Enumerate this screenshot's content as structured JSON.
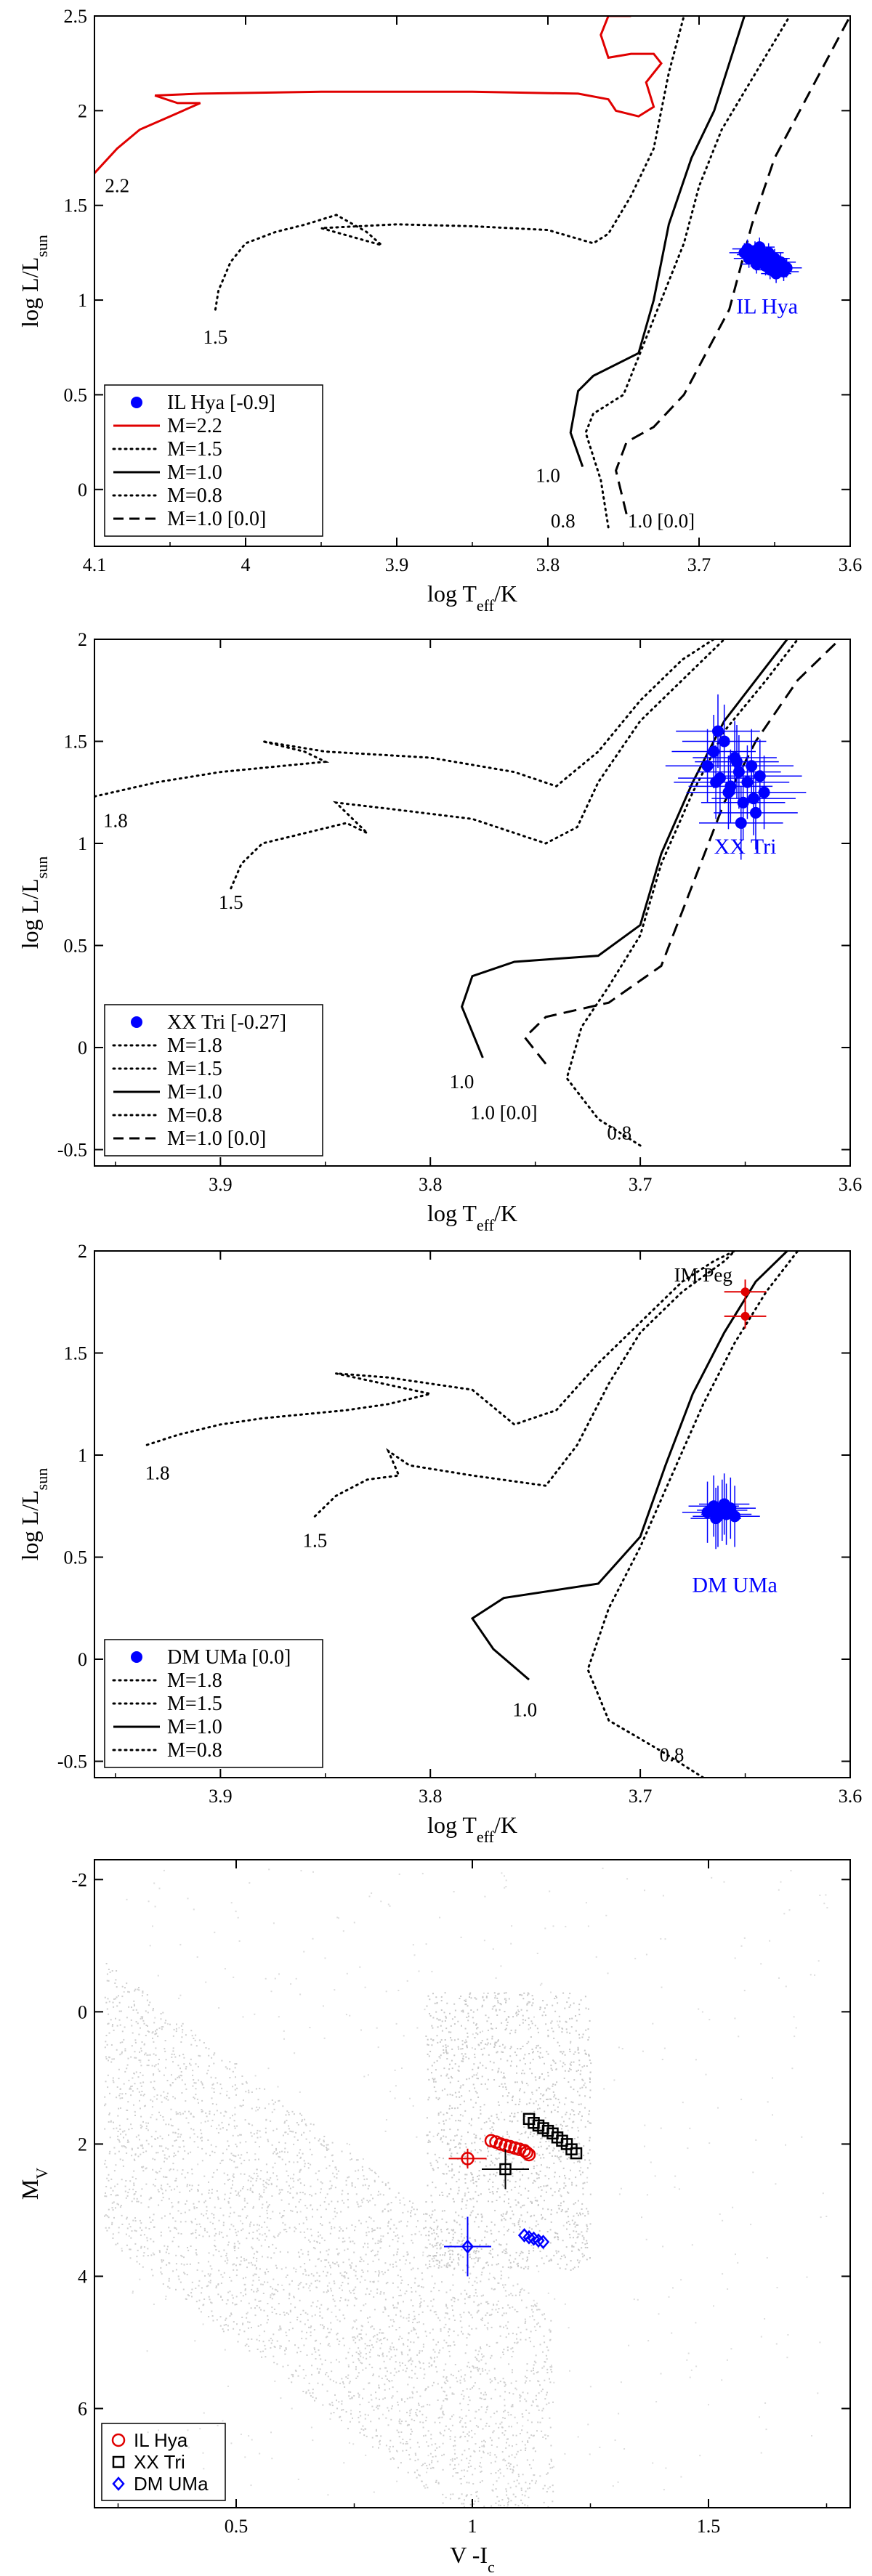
{
  "chart_data": [
    {
      "type": "line",
      "id": "p1",
      "xlabel": "log T_eff/K",
      "ylabel": "log L/L_sun",
      "xlim": [
        4.1,
        3.6
      ],
      "ylim": [
        -0.3,
        2.5
      ],
      "xticks": [
        "4.1",
        "4",
        "3.9",
        "3.8",
        "3.7",
        "3.6"
      ],
      "yticks": [
        "0",
        "0.5",
        "1",
        "1.5",
        "2",
        "2.5"
      ],
      "legend_position": "bottom-left",
      "legend": [
        {
          "label": "IL Hya [-0.9]",
          "symbol": "dot",
          "color": "#0000ff"
        },
        {
          "label": "M=2.2",
          "symbol": "solid",
          "color": "#e00000"
        },
        {
          "label": "M=1.5",
          "symbol": "dotted",
          "color": "#000000"
        },
        {
          "label": "M=1.0",
          "symbol": "solid",
          "color": "#000000"
        },
        {
          "label": "M=0.8",
          "symbol": "dotted",
          "color": "#000000"
        },
        {
          "label": "M=1.0 [0.0]",
          "symbol": "dashed",
          "color": "#000000"
        }
      ],
      "series": [
        {
          "name": "M=2.2",
          "style": "solid",
          "color": "#e00000",
          "x": [
            4.1,
            4.085,
            4.07,
            4.05,
            4.03,
            4.045,
            4.06,
            4.03,
            3.95,
            3.85,
            3.78,
            3.76,
            3.755,
            3.74,
            3.73,
            3.735,
            3.725,
            3.73,
            3.745,
            3.76,
            3.765,
            3.76,
            3.745
          ],
          "y": [
            1.67,
            1.8,
            1.9,
            1.97,
            2.04,
            2.04,
            2.08,
            2.09,
            2.1,
            2.1,
            2.09,
            2.06,
            2.0,
            1.97,
            2.02,
            2.15,
            2.25,
            2.3,
            2.3,
            2.28,
            2.4,
            2.5,
            2.5
          ]
        },
        {
          "name": "M=1.5",
          "style": "dotted",
          "color": "#000000",
          "x": [
            4.02,
            4.018,
            4.01,
            4.0,
            3.98,
            3.96,
            3.94,
            3.92,
            3.91,
            3.95,
            3.9,
            3.85,
            3.8,
            3.77,
            3.76,
            3.745,
            3.73,
            3.72,
            3.71
          ],
          "y": [
            0.95,
            1.05,
            1.2,
            1.3,
            1.36,
            1.4,
            1.45,
            1.36,
            1.29,
            1.38,
            1.4,
            1.39,
            1.37,
            1.3,
            1.35,
            1.55,
            1.8,
            2.2,
            2.5
          ]
        },
        {
          "name": "M=1.0",
          "style": "solid",
          "color": "#000000",
          "x": [
            3.777,
            3.785,
            3.78,
            3.77,
            3.74,
            3.73,
            3.72,
            3.705,
            3.69,
            3.68,
            3.67
          ],
          "y": [
            0.12,
            0.3,
            0.52,
            0.6,
            0.72,
            1.0,
            1.4,
            1.75,
            2.0,
            2.25,
            2.5
          ]
        },
        {
          "name": "M=0.8",
          "style": "dotted",
          "color": "#000000",
          "x": [
            3.76,
            3.765,
            3.775,
            3.77,
            3.75,
            3.73,
            3.71,
            3.7,
            3.685,
            3.67,
            3.655,
            3.64
          ],
          "y": [
            -0.2,
            0.05,
            0.3,
            0.4,
            0.5,
            0.9,
            1.3,
            1.6,
            1.9,
            2.1,
            2.3,
            2.5
          ]
        },
        {
          "name": "M=1.0 [0.0]",
          "style": "dashed",
          "color": "#000000",
          "x": [
            3.748,
            3.755,
            3.748,
            3.73,
            3.71,
            3.68,
            3.665,
            3.65,
            3.63,
            3.61,
            3.6
          ],
          "y": [
            -0.13,
            0.1,
            0.25,
            0.33,
            0.5,
            0.95,
            1.4,
            1.75,
            2.05,
            2.35,
            2.5
          ]
        }
      ],
      "scatter": {
        "name": "IL Hya [-0.9]",
        "color": "#0000ff",
        "x": [
          3.67,
          3.668,
          3.665,
          3.663,
          3.661,
          3.66,
          3.658,
          3.657,
          3.655,
          3.654,
          3.652,
          3.65,
          3.648,
          3.646,
          3.644,
          3.642,
          3.667,
          3.662,
          3.659,
          3.656,
          3.653,
          3.649
        ],
        "y": [
          1.25,
          1.27,
          1.24,
          1.26,
          1.22,
          1.28,
          1.21,
          1.23,
          1.2,
          1.25,
          1.19,
          1.22,
          1.17,
          1.2,
          1.15,
          1.17,
          1.22,
          1.19,
          1.24,
          1.18,
          1.16,
          1.14
        ],
        "xerr": 0.01,
        "yerr": 0.05
      },
      "track_labels": [
        {
          "text": "2.2",
          "x": 4.085,
          "y": 1.57
        },
        {
          "text": "1.5",
          "x": 4.02,
          "y": 0.77
        },
        {
          "text": "1.0",
          "x": 3.8,
          "y": 0.04
        },
        {
          "text": "0.8",
          "x": 3.79,
          "y": -0.2
        },
        {
          "text": "1.0 [0.0]",
          "x": 3.725,
          "y": -0.2
        }
      ],
      "star_label": {
        "text": "IL Hya",
        "x": 3.655,
        "y": 0.93,
        "color": "#0000ff"
      }
    },
    {
      "type": "line",
      "id": "p2",
      "xlabel": "log T_eff/K",
      "ylabel": "log L/L_sun",
      "xlim": [
        3.96,
        3.6
      ],
      "ylim": [
        -0.58,
        2.0
      ],
      "xticks": [
        "3.9",
        "3.8",
        "3.7",
        "3.6"
      ],
      "yticks": [
        "-0.5",
        "0",
        "0.5",
        "1",
        "1.5",
        "2"
      ],
      "legend_position": "bottom-left",
      "legend": [
        {
          "label": "XX Tri [-0.27]",
          "symbol": "dot",
          "color": "#0000ff"
        },
        {
          "label": "M=1.8",
          "symbol": "dotted",
          "color": "#000000"
        },
        {
          "label": "M=1.5",
          "symbol": "dotted",
          "color": "#000000"
        },
        {
          "label": "M=1.0",
          "symbol": "solid",
          "color": "#000000"
        },
        {
          "label": "M=0.8",
          "symbol": "dotted",
          "color": "#000000"
        },
        {
          "label": "M=1.0 [0.0]",
          "symbol": "dashed",
          "color": "#000000"
        }
      ],
      "series": [
        {
          "name": "M=1.8",
          "style": "dotted",
          "color": "#000000",
          "x": [
            3.96,
            3.93,
            3.9,
            3.87,
            3.85,
            3.86,
            3.88,
            3.85,
            3.8,
            3.76,
            3.74,
            3.72,
            3.7,
            3.68,
            3.665
          ],
          "y": [
            1.23,
            1.3,
            1.35,
            1.38,
            1.4,
            1.45,
            1.5,
            1.45,
            1.42,
            1.35,
            1.28,
            1.45,
            1.7,
            1.9,
            2.0
          ]
        },
        {
          "name": "M=1.5",
          "style": "dotted",
          "color": "#000000",
          "x": [
            3.895,
            3.89,
            3.88,
            3.86,
            3.84,
            3.83,
            3.845,
            3.82,
            3.78,
            3.745,
            3.73,
            3.72,
            3.7,
            3.675,
            3.66
          ],
          "y": [
            0.78,
            0.9,
            1.0,
            1.05,
            1.1,
            1.05,
            1.2,
            1.17,
            1.12,
            1.0,
            1.08,
            1.3,
            1.6,
            1.85,
            2.0
          ]
        },
        {
          "name": "M=1.0",
          "style": "solid",
          "color": "#000000",
          "x": [
            3.775,
            3.785,
            3.78,
            3.76,
            3.72,
            3.7,
            3.69,
            3.675,
            3.66,
            3.645,
            3.63
          ],
          "y": [
            -0.05,
            0.2,
            0.35,
            0.42,
            0.45,
            0.6,
            0.95,
            1.3,
            1.6,
            1.8,
            2.0
          ]
        },
        {
          "name": "M=0.8",
          "style": "dotted",
          "color": "#000000",
          "x": [
            3.7,
            3.72,
            3.735,
            3.728,
            3.715,
            3.7,
            3.69,
            3.675,
            3.66,
            3.64,
            3.625
          ],
          "y": [
            -0.48,
            -0.35,
            -0.15,
            0.1,
            0.3,
            0.55,
            0.9,
            1.25,
            1.55,
            1.8,
            2.0
          ]
        },
        {
          "name": "M=1.0 [0.0]",
          "style": "dashed",
          "color": "#000000",
          "x": [
            3.745,
            3.755,
            3.745,
            3.715,
            3.69,
            3.675,
            3.66,
            3.645,
            3.625,
            3.605
          ],
          "y": [
            -0.08,
            0.05,
            0.15,
            0.22,
            0.4,
            0.8,
            1.2,
            1.5,
            1.8,
            2.0
          ]
        }
      ],
      "scatter": {
        "name": "XX Tri [-0.27]",
        "color": "#0000ff",
        "x": [
          3.668,
          3.665,
          3.662,
          3.66,
          3.658,
          3.655,
          3.653,
          3.651,
          3.649,
          3.647,
          3.645,
          3.643,
          3.641,
          3.663,
          3.657,
          3.652,
          3.646,
          3.664,
          3.654
        ],
        "y": [
          1.38,
          1.45,
          1.32,
          1.5,
          1.25,
          1.42,
          1.35,
          1.2,
          1.3,
          1.38,
          1.15,
          1.33,
          1.25,
          1.55,
          1.28,
          1.1,
          1.22,
          1.3,
          1.4
        ],
        "xerr": 0.02,
        "yerr": 0.18
      },
      "track_labels": [
        {
          "text": "1.8",
          "x": 3.95,
          "y": 1.08
        },
        {
          "text": "1.5",
          "x": 3.895,
          "y": 0.68
        },
        {
          "text": "1.0",
          "x": 3.785,
          "y": -0.2
        },
        {
          "text": "1.0 [0.0]",
          "x": 3.765,
          "y": -0.35
        },
        {
          "text": "0.8",
          "x": 3.71,
          "y": -0.45
        }
      ],
      "star_label": {
        "text": "XX Tri",
        "x": 3.65,
        "y": 0.95,
        "color": "#0000ff"
      }
    },
    {
      "type": "line",
      "id": "p3",
      "xlabel": "log T_eff/K",
      "ylabel": "log L/L_sun",
      "xlim": [
        3.96,
        3.6
      ],
      "ylim": [
        -0.58,
        2.0
      ],
      "xticks": [
        "3.9",
        "3.8",
        "3.7",
        "3.6"
      ],
      "yticks": [
        "-0.5",
        "0",
        "0.5",
        "1",
        "1.5",
        "2"
      ],
      "legend_position": "bottom-left",
      "legend": [
        {
          "label": "DM UMa [0.0]",
          "symbol": "dot",
          "color": "#0000ff"
        },
        {
          "label": "M=1.8",
          "symbol": "dotted",
          "color": "#000000"
        },
        {
          "label": "M=1.5",
          "symbol": "dotted",
          "color": "#000000"
        },
        {
          "label": "M=1.0",
          "symbol": "solid",
          "color": "#000000"
        },
        {
          "label": "M=0.8",
          "symbol": "dotted",
          "color": "#000000"
        }
      ],
      "series": [
        {
          "name": "M=1.8",
          "style": "dotted",
          "color": "#000000",
          "x": [
            3.935,
            3.92,
            3.9,
            3.88,
            3.86,
            3.84,
            3.82,
            3.8,
            3.845,
            3.82,
            3.78,
            3.76,
            3.74,
            3.72,
            3.7,
            3.68,
            3.665,
            3.655
          ],
          "y": [
            1.05,
            1.1,
            1.15,
            1.18,
            1.2,
            1.22,
            1.25,
            1.3,
            1.4,
            1.38,
            1.32,
            1.15,
            1.22,
            1.45,
            1.65,
            1.85,
            1.95,
            2.0
          ]
        },
        {
          "name": "M=1.5",
          "style": "dotted",
          "color": "#000000",
          "x": [
            3.855,
            3.845,
            3.83,
            3.815,
            3.82,
            3.81,
            3.78,
            3.745,
            3.73,
            3.715,
            3.7,
            3.68,
            3.66,
            3.655
          ],
          "y": [
            0.7,
            0.8,
            0.88,
            0.9,
            1.02,
            0.95,
            0.9,
            0.85,
            1.05,
            1.35,
            1.6,
            1.8,
            1.95,
            2.0
          ]
        },
        {
          "name": "M=1.0",
          "style": "solid",
          "color": "#000000",
          "x": [
            3.753,
            3.77,
            3.78,
            3.765,
            3.72,
            3.7,
            3.688,
            3.675,
            3.66,
            3.645,
            3.63
          ],
          "y": [
            -0.1,
            0.05,
            0.2,
            0.3,
            0.37,
            0.6,
            0.95,
            1.3,
            1.6,
            1.85,
            2.0
          ]
        },
        {
          "name": "M=0.8",
          "style": "dotted",
          "color": "#000000",
          "x": [
            3.67,
            3.69,
            3.715,
            3.725,
            3.715,
            3.7,
            3.685,
            3.67,
            3.655,
            3.64,
            3.625
          ],
          "y": [
            -0.58,
            -0.45,
            -0.3,
            -0.05,
            0.25,
            0.55,
            0.9,
            1.25,
            1.55,
            1.8,
            2.0
          ]
        }
      ],
      "scatter": {
        "name": "DM UMa [0.0]",
        "color": "#0000ff",
        "x": [
          3.668,
          3.665,
          3.663,
          3.661,
          3.659,
          3.657,
          3.655,
          3.664,
          3.66
        ],
        "y": [
          0.72,
          0.75,
          0.7,
          0.73,
          0.71,
          0.74,
          0.7,
          0.69,
          0.76
        ],
        "xerr": 0.012,
        "yerr": 0.15
      },
      "extra_points": {
        "name": "IM Peg",
        "color": "#e00000",
        "x": [
          3.65,
          3.65
        ],
        "y": [
          1.8,
          1.68
        ],
        "xerr": 0.01,
        "yerr": 0.06
      },
      "track_labels": [
        {
          "text": "1.8",
          "x": 3.93,
          "y": 0.88
        },
        {
          "text": "1.5",
          "x": 3.855,
          "y": 0.55
        },
        {
          "text": "1.0",
          "x": 3.755,
          "y": -0.28
        },
        {
          "text": "0.8",
          "x": 3.685,
          "y": -0.5
        }
      ],
      "star_label": {
        "text": "DM UMa",
        "x": 3.655,
        "y": 0.33,
        "color": "#0000ff"
      },
      "extra_label": {
        "text": "IM Peg",
        "x": 3.67,
        "y": 1.85,
        "color": "#e00000"
      }
    },
    {
      "type": "scatter",
      "id": "p4",
      "xlabel": "V -I_c",
      "ylabel": "M_V",
      "xlim": [
        0.2,
        1.8
      ],
      "ylim": [
        7.5,
        -2.3
      ],
      "xticks": [
        "0.5",
        "1",
        "1.5"
      ],
      "yticks": [
        "-2",
        "0",
        "2",
        "4",
        "6"
      ],
      "legend_position": "bottom-left",
      "legend": [
        {
          "label": "IL Hya",
          "symbol": "circle",
          "color": "#e00000"
        },
        {
          "label": "XX Tri",
          "symbol": "square",
          "color": "#000000"
        },
        {
          "label": "DM UMa",
          "symbol": "diamond",
          "color": "#0000ff"
        }
      ],
      "series": [
        {
          "name": "IL Hya",
          "marker": "circle",
          "color": "#e00000",
          "x": [
            1.04,
            1.05,
            1.06,
            1.07,
            1.08,
            1.09,
            1.1,
            1.11,
            1.115,
            1.12
          ],
          "y": [
            1.95,
            1.97,
            2.0,
            2.02,
            2.04,
            2.06,
            2.08,
            2.1,
            2.13,
            2.16
          ],
          "mean": {
            "x": 0.99,
            "y": 2.22,
            "xerr": 0.04,
            "yerr": 0.15
          }
        },
        {
          "name": "XX Tri",
          "marker": "square",
          "color": "#000000",
          "x": [
            1.12,
            1.13,
            1.14,
            1.15,
            1.16,
            1.17,
            1.18,
            1.19,
            1.2,
            1.21,
            1.22
          ],
          "y": [
            1.62,
            1.68,
            1.72,
            1.76,
            1.8,
            1.84,
            1.9,
            1.95,
            2.0,
            2.08,
            2.14
          ],
          "mean": {
            "x": 1.07,
            "y": 2.38,
            "xerr": 0.05,
            "yerr": 0.3
          }
        },
        {
          "name": "DM UMa",
          "marker": "diamond",
          "color": "#0000ff",
          "x": [
            1.11,
            1.12,
            1.13,
            1.14,
            1.15
          ],
          "y": [
            3.38,
            3.41,
            3.43,
            3.46,
            3.48
          ],
          "mean": {
            "x": 0.99,
            "y": 3.55,
            "xerr": 0.05,
            "yerr": 0.45
          }
        }
      ]
    }
  ]
}
